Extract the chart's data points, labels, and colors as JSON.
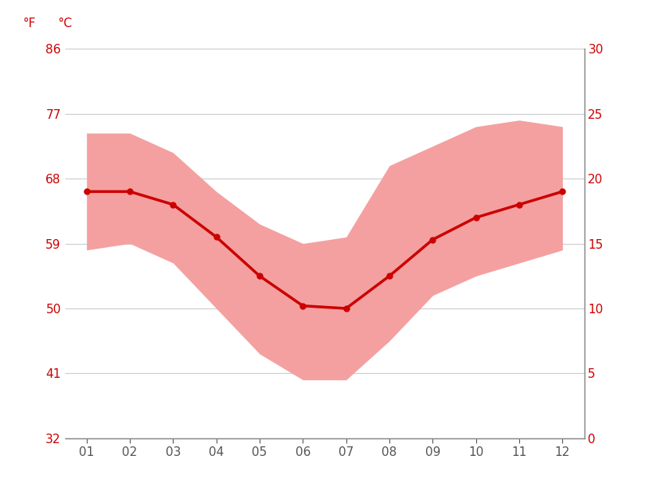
{
  "months": [
    1,
    2,
    3,
    4,
    5,
    6,
    7,
    8,
    9,
    10,
    11,
    12
  ],
  "month_labels": [
    "01",
    "02",
    "03",
    "04",
    "05",
    "06",
    "07",
    "08",
    "09",
    "10",
    "11",
    "12"
  ],
  "avg_temp": [
    19.0,
    19.0,
    18.0,
    15.5,
    12.5,
    10.2,
    10.0,
    12.5,
    15.3,
    17.0,
    18.0,
    19.0
  ],
  "max_temp": [
    23.5,
    23.5,
    22.0,
    19.0,
    16.5,
    15.0,
    15.5,
    21.0,
    22.5,
    24.0,
    24.5,
    24.0
  ],
  "min_temp": [
    14.5,
    15.0,
    13.5,
    10.0,
    6.5,
    4.5,
    4.5,
    7.5,
    11.0,
    12.5,
    13.5,
    14.5
  ],
  "ylim_c": [
    0,
    30
  ],
  "xlim": [
    0.5,
    12.5
  ],
  "yticks_c": [
    0,
    5,
    10,
    15,
    20,
    25,
    30
  ],
  "yticks_f": [
    32,
    41,
    50,
    59,
    68,
    77,
    86
  ],
  "line_color": "#cc0000",
  "fill_color": "#f4a0a0",
  "bg_color": "#ffffff",
  "grid_color": "#cccccc",
  "label_color": "#cc0000",
  "spine_color": "#888888",
  "tick_color": "#555555",
  "label_f": "°F",
  "label_c": "°C",
  "fontsize": 11,
  "figsize": [
    8.15,
    6.11
  ],
  "dpi": 100
}
